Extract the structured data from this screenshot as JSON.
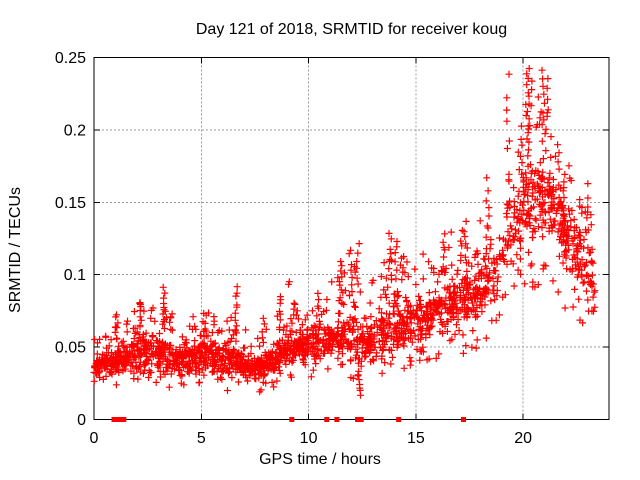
{
  "chart_data": {
    "type": "scatter",
    "title": "Day 121 of 2018, SRMTID for receiver koug",
    "xlabel": "GPS time / hours",
    "ylabel": "SRMTID / TECUs",
    "xlim": [
      0,
      24
    ],
    "ylim": [
      0,
      0.25
    ],
    "xticks": [
      {
        "v": 0,
        "label": "0"
      },
      {
        "v": 5,
        "label": "5"
      },
      {
        "v": 10,
        "label": "10"
      },
      {
        "v": 15,
        "label": "15"
      },
      {
        "v": 20,
        "label": "20"
      }
    ],
    "yticks": [
      {
        "v": 0,
        "label": "0"
      },
      {
        "v": 0.05,
        "label": "0.05"
      },
      {
        "v": 0.1,
        "label": "0.1"
      },
      {
        "v": 0.15,
        "label": "0.15"
      },
      {
        "v": 0.2,
        "label": "0.2"
      },
      {
        "v": 0.25,
        "label": "0.25"
      }
    ],
    "grid": true,
    "legend": "none",
    "marker": {
      "shape": "plus",
      "color": "#ff0000",
      "size": 7,
      "stroke_width": 1.2
    },
    "baseline_marker": {
      "shape": "square",
      "color": "#ff0000",
      "size": 5
    },
    "grid_color": "#9b9b9b",
    "border_color": "#000000",
    "text_color": "#000000",
    "background": "#ffffff",
    "seed": 121,
    "points_per_hour": 95,
    "envelope_columns": [
      "t_hours",
      "y_low",
      "y_center",
      "y_high",
      "density"
    ],
    "envelope": [
      [
        0.0,
        0.02,
        0.038,
        0.06,
        1.0
      ],
      [
        0.7,
        0.018,
        0.04,
        0.062,
        1.0
      ],
      [
        1.5,
        0.022,
        0.042,
        0.068,
        1.0
      ],
      [
        2.1,
        0.024,
        0.046,
        0.08,
        1.0
      ],
      [
        2.7,
        0.025,
        0.048,
        0.088,
        1.0
      ],
      [
        3.4,
        0.022,
        0.044,
        0.08,
        1.0
      ],
      [
        4.0,
        0.018,
        0.04,
        0.066,
        1.0
      ],
      [
        4.6,
        0.02,
        0.043,
        0.072,
        1.0
      ],
      [
        5.2,
        0.022,
        0.046,
        0.078,
        1.0
      ],
      [
        5.8,
        0.02,
        0.042,
        0.07,
        1.0
      ],
      [
        6.5,
        0.02,
        0.04,
        0.075,
        1.0
      ],
      [
        7.2,
        0.017,
        0.036,
        0.06,
        1.0
      ],
      [
        7.8,
        0.018,
        0.036,
        0.058,
        1.0
      ],
      [
        8.4,
        0.02,
        0.042,
        0.075,
        1.0
      ],
      [
        9.0,
        0.024,
        0.048,
        0.082,
        1.0
      ],
      [
        9.6,
        0.028,
        0.052,
        0.08,
        1.0
      ],
      [
        10.2,
        0.028,
        0.05,
        0.085,
        0.9
      ],
      [
        10.8,
        0.03,
        0.054,
        0.092,
        1.0
      ],
      [
        11.4,
        0.03,
        0.058,
        0.1,
        1.0
      ],
      [
        12.0,
        0.028,
        0.058,
        0.108,
        1.0
      ],
      [
        12.6,
        0.025,
        0.055,
        0.1,
        0.9
      ],
      [
        13.2,
        0.03,
        0.057,
        0.1,
        1.0
      ],
      [
        13.8,
        0.032,
        0.064,
        0.118,
        1.0
      ],
      [
        14.4,
        0.032,
        0.066,
        0.115,
        1.0
      ],
      [
        15.0,
        0.038,
        0.068,
        0.112,
        1.0
      ],
      [
        15.6,
        0.04,
        0.074,
        0.12,
        1.0
      ],
      [
        16.2,
        0.042,
        0.078,
        0.128,
        1.0
      ],
      [
        16.8,
        0.042,
        0.08,
        0.13,
        1.0
      ],
      [
        17.4,
        0.046,
        0.086,
        0.135,
        1.0
      ],
      [
        18.0,
        0.05,
        0.09,
        0.14,
        1.0
      ],
      [
        18.45,
        0.055,
        0.1,
        0.15,
        0.85
      ],
      [
        18.8,
        0.06,
        0.105,
        0.15,
        0.45
      ],
      [
        19.1,
        0.07,
        0.12,
        0.185,
        0.45
      ],
      [
        19.45,
        0.08,
        0.13,
        0.205,
        0.55
      ],
      [
        19.8,
        0.09,
        0.14,
        0.215,
        0.85
      ],
      [
        20.1,
        0.09,
        0.15,
        0.232,
        1.1
      ],
      [
        20.5,
        0.088,
        0.148,
        0.225,
        1.1
      ],
      [
        21.0,
        0.095,
        0.158,
        0.235,
        1.15
      ],
      [
        21.4,
        0.085,
        0.145,
        0.2,
        1.05
      ],
      [
        21.9,
        0.075,
        0.13,
        0.185,
        1.0
      ],
      [
        22.4,
        0.065,
        0.118,
        0.17,
        1.0
      ],
      [
        22.9,
        0.058,
        0.108,
        0.16,
        0.95
      ],
      [
        23.35,
        0.045,
        0.085,
        0.135,
        0.6
      ]
    ],
    "bursts_columns": [
      "t_hours",
      "y_from",
      "y_to",
      "n_points"
    ],
    "bursts": [
      [
        1.05,
        0.055,
        0.075,
        6
      ],
      [
        2.2,
        0.062,
        0.082,
        7
      ],
      [
        3.3,
        0.062,
        0.093,
        9
      ],
      [
        5.15,
        0.056,
        0.076,
        7
      ],
      [
        6.6,
        0.06,
        0.094,
        9
      ],
      [
        7.9,
        0.05,
        0.072,
        5
      ],
      [
        8.7,
        0.06,
        0.088,
        8
      ],
      [
        9.05,
        0.09,
        0.099,
        2
      ],
      [
        10.45,
        0.062,
        0.09,
        7
      ],
      [
        11.5,
        0.08,
        0.112,
        9
      ],
      [
        11.95,
        0.082,
        0.121,
        8
      ],
      [
        12.3,
        0.095,
        0.128,
        4
      ],
      [
        12.35,
        0.016,
        0.034,
        7
      ],
      [
        13.8,
        0.095,
        0.13,
        8
      ],
      [
        14.1,
        0.095,
        0.128,
        6
      ],
      [
        16.3,
        0.1,
        0.13,
        6
      ],
      [
        17.3,
        0.1,
        0.14,
        7
      ],
      [
        18.35,
        0.115,
        0.17,
        8
      ],
      [
        19.3,
        0.115,
        0.243,
        12
      ],
      [
        19.85,
        0.155,
        0.205,
        6
      ],
      [
        20.2,
        0.18,
        0.243,
        12
      ],
      [
        20.35,
        0.2,
        0.245,
        7
      ],
      [
        20.95,
        0.19,
        0.243,
        10
      ],
      [
        21.1,
        0.2,
        0.24,
        6
      ],
      [
        21.85,
        0.14,
        0.167,
        7
      ],
      [
        23.05,
        0.13,
        0.168,
        5
      ]
    ],
    "baseline_marks_hours": [
      0.93,
      1.06,
      1.27,
      1.39,
      9.22,
      10.85,
      11.32,
      12.28,
      12.45,
      14.2,
      17.22
    ]
  }
}
